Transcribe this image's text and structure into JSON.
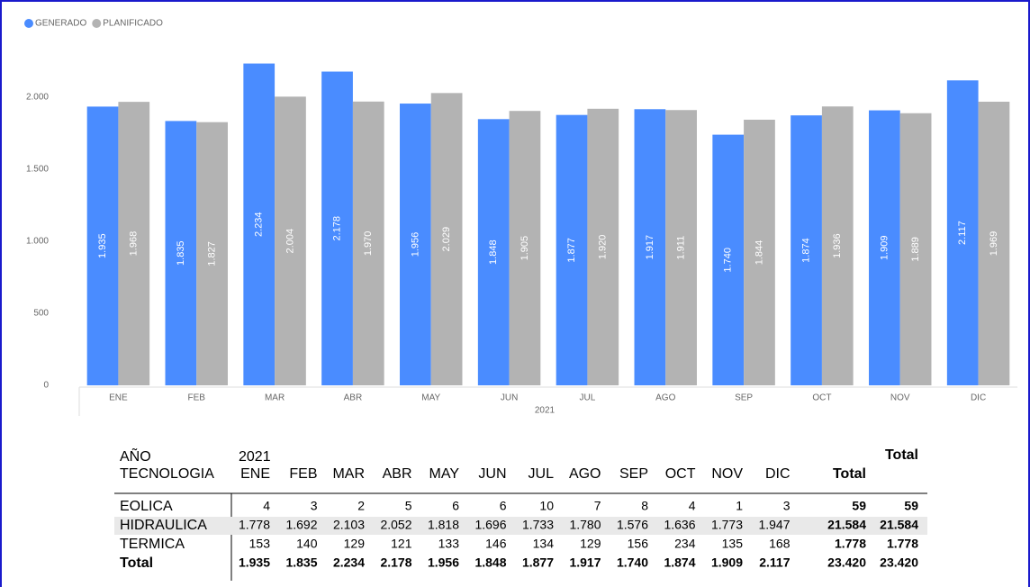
{
  "chart_data": {
    "type": "bar",
    "x_label": "2021",
    "categories": [
      "ENE",
      "FEB",
      "MAR",
      "ABR",
      "MAY",
      "JUN",
      "JUL",
      "AGO",
      "SEP",
      "OCT",
      "NOV",
      "DIC"
    ],
    "series": [
      {
        "name": "GENERADO",
        "color": "#4a8cff",
        "values": [
          1935,
          1835,
          2234,
          2178,
          1956,
          1848,
          1877,
          1917,
          1740,
          1874,
          1909,
          2117
        ],
        "value_labels": [
          "1.935",
          "1.835",
          "2.234",
          "2.178",
          "1.956",
          "1.848",
          "1.877",
          "1.917",
          "1.740",
          "1.874",
          "1.909",
          "2.117"
        ]
      },
      {
        "name": "PLANIFICADO",
        "color": "#b3b3b3",
        "values": [
          1968,
          1827,
          2004,
          1970,
          2029,
          1905,
          1920,
          1911,
          1844,
          1936,
          1889,
          1969
        ],
        "value_labels": [
          "1.968",
          "1.827",
          "2.004",
          "1.970",
          "2.029",
          "1.905",
          "1.920",
          "1.911",
          "1.844",
          "1.936",
          "1.889",
          "1.969"
        ]
      }
    ],
    "ylim": [
      0,
      2250
    ],
    "yticks": [
      0,
      500,
      {
        "value": 1000,
        "label": "1.000"
      },
      {
        "value": 1500,
        "label": "1.500"
      },
      {
        "value": 2000,
        "label": "2.000"
      }
    ],
    "grid": false,
    "legend": "top-left"
  },
  "table": {
    "header": [
      "AÑO",
      "2021",
      "Total"
    ],
    "columns": [
      "TECNOLOGIA",
      "ENE",
      "FEB",
      "MAR",
      "ABR",
      "MAY",
      "JUN",
      "JUL",
      "AGO",
      "SEP",
      "OCT",
      "NOV",
      "DIC",
      "Total"
    ],
    "rows": [
      [
        "EOLICA",
        "4",
        "3",
        "2",
        "5",
        "6",
        "6",
        "10",
        "7",
        "8",
        "4",
        "1",
        "3",
        "59",
        "59"
      ],
      [
        "HIDRAULICA",
        "1.778",
        "1.692",
        "2.103",
        "2.052",
        "1.818",
        "1.696",
        "1.733",
        "1.780",
        "1.576",
        "1.636",
        "1.773",
        "1.947",
        "21.584",
        "21.584"
      ],
      [
        "TERMICA",
        "153",
        "140",
        "129",
        "121",
        "133",
        "146",
        "134",
        "129",
        "156",
        "234",
        "135",
        "168",
        "1.778",
        "1.778"
      ],
      [
        "Total",
        "1.935",
        "1.835",
        "2.234",
        "2.178",
        "1.956",
        "1.848",
        "1.877",
        "1.917",
        "1.740",
        "1.874",
        "1.909",
        "2.117",
        "23.420",
        "23.420"
      ]
    ]
  }
}
